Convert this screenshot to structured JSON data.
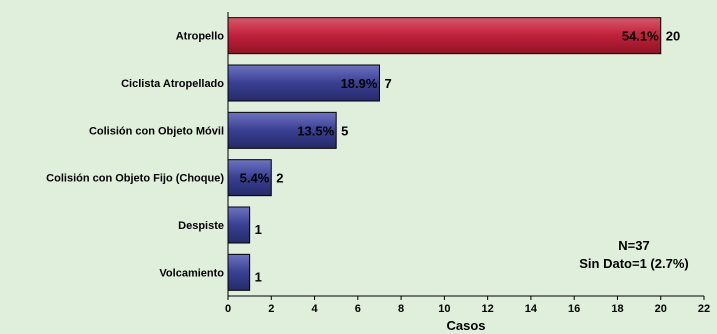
{
  "chart_data": {
    "type": "bar",
    "orientation": "horizontal",
    "categories": [
      "Atropello",
      "Ciclista Atropellado",
      "Colisión con Objeto Móvil",
      "Colisión con Objeto Fijo (Choque)",
      "Despiste",
      "Volcamiento"
    ],
    "values": [
      20,
      7,
      5,
      2,
      1,
      1
    ],
    "percent_labels": [
      "54.1%",
      "18.9%",
      "13.5%",
      "5.4%",
      "",
      ""
    ],
    "value_labels": [
      "20",
      "7",
      "5",
      "2",
      "1",
      "1"
    ],
    "bar_colors": [
      "#c0203a",
      "#3a3f92",
      "#3a3f92",
      "#3a3f92",
      "#3a3f92",
      "#3a3f92"
    ],
    "xlabel": "Casos",
    "xlim": [
      0,
      22
    ],
    "xticks": [
      "0",
      "2",
      "4",
      "6",
      "8",
      "10",
      "12",
      "14",
      "16",
      "18",
      "20",
      "22"
    ],
    "grid": false,
    "annotations": [
      "N=37",
      "Sin Dato=1 (2.7%)"
    ]
  }
}
